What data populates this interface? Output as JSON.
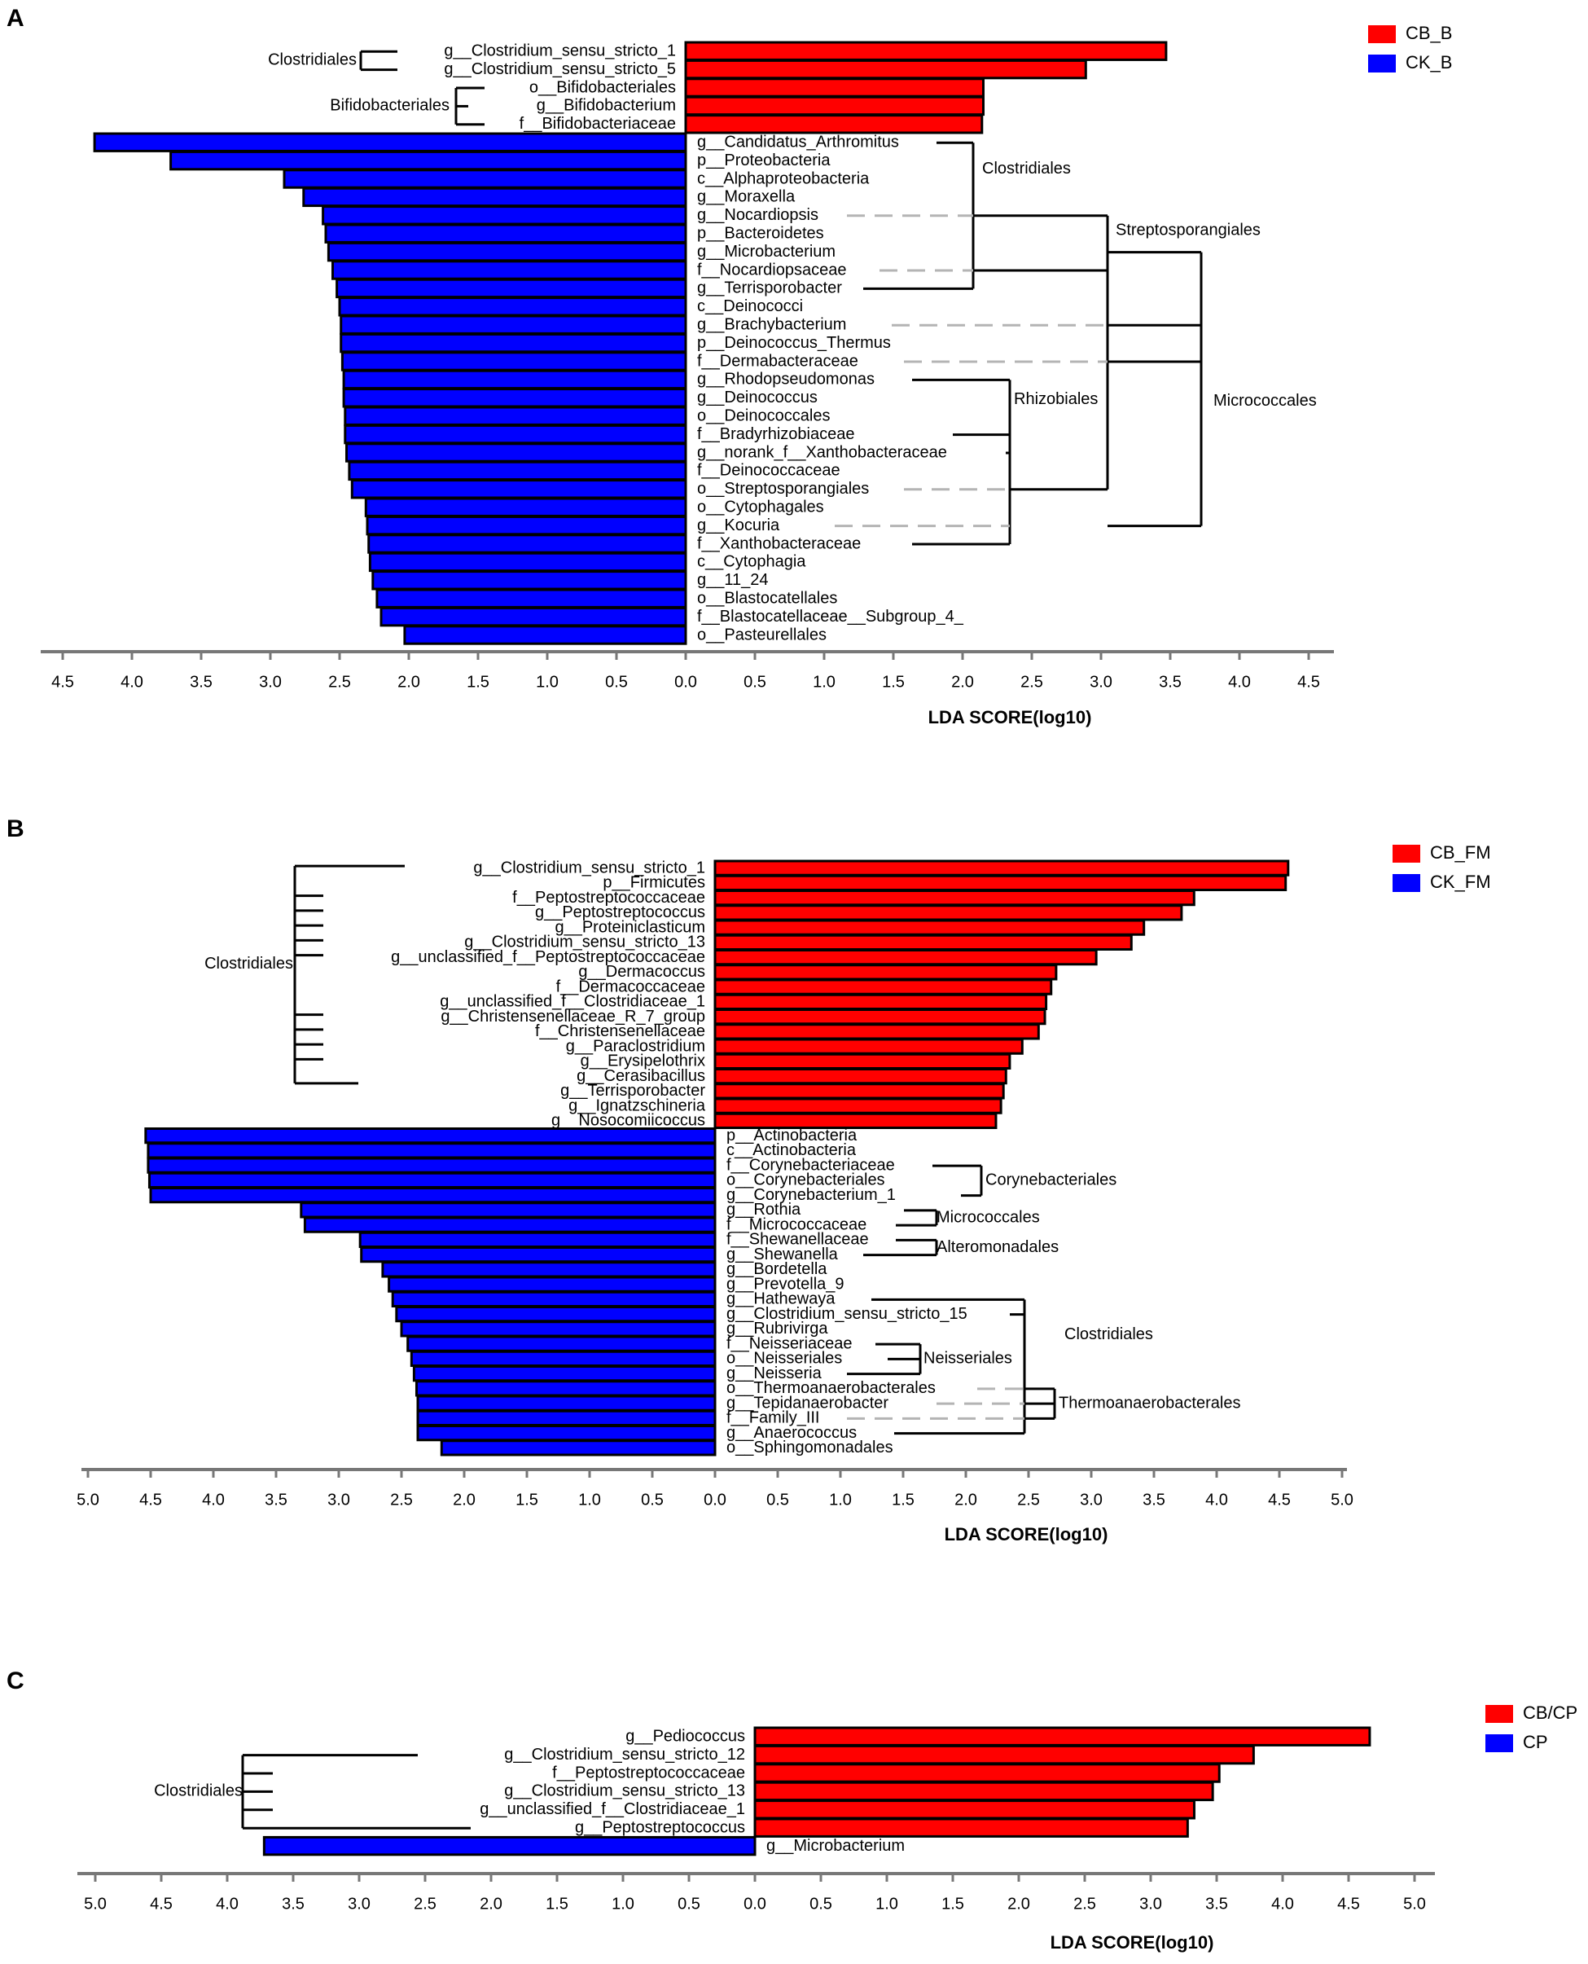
{
  "chart_data": [
    {
      "panel": "A",
      "type": "bar",
      "orientation": "horizontal",
      "title": "",
      "xlabel": "LDA SCORE(log10)",
      "xlim": [
        -4.5,
        4.5
      ],
      "ticks": [
        "4.5",
        "4.0",
        "3.5",
        "3.0",
        "2.5",
        "2.0",
        "1.5",
        "1.0",
        "0.5",
        "0.0",
        "0.5",
        "1.0",
        "1.5",
        "2.0",
        "2.5",
        "3.0",
        "3.5",
        "4.0",
        "4.5"
      ],
      "legend": [
        {
          "name": "CB_B",
          "color": "#ff0000"
        },
        {
          "name": "CK_B",
          "color": "#0000ff"
        }
      ],
      "series": [
        {
          "name": "CB_B",
          "color": "#ff0000",
          "side": "right",
          "labels": [
            "g__Clostridium_sensu_stricto_1",
            "g__Clostridium_sensu_stricto_5",
            "o__Bifidobacteriales",
            "g__Bifidobacterium",
            "f__Bifidobacteriaceae"
          ],
          "values": [
            3.47,
            2.89,
            2.15,
            2.15,
            2.14
          ]
        },
        {
          "name": "CK_B",
          "color": "#0000ff",
          "side": "left",
          "labels": [
            "g__Candidatus_Arthromitus",
            "p__Proteobacteria",
            "c__Alphaproteobacteria",
            "g__Moraxella",
            "g__Nocardiopsis",
            "p__Bacteroidetes",
            "g__Microbacterium",
            "f__Nocardiopsaceae",
            "g__Terrisporobacter",
            "c__Deinococci",
            "g__Brachybacterium",
            "p__Deinococcus_Thermus",
            "f__Dermabacteraceae",
            "g__Rhodopseudomonas",
            "g__Deinococcus",
            "o__Deinococcales",
            "f__Bradyrhizobiaceae",
            "g__norank_f__Xanthobacteraceae",
            "f__Deinococcaceae",
            "o__Streptosporangiales",
            "o__Cytophagales",
            "g__Kocuria",
            "f__Xanthobacteraceae",
            "c__Cytophagia",
            "g__11_24",
            "o__Blastocatellales",
            "f__Blastocatellaceae__Subgroup_4_",
            "o__Pasteurellales"
          ],
          "values": [
            4.27,
            3.72,
            2.9,
            2.76,
            2.62,
            2.6,
            2.58,
            2.55,
            2.52,
            2.5,
            2.49,
            2.49,
            2.48,
            2.47,
            2.47,
            2.46,
            2.46,
            2.45,
            2.43,
            2.41,
            2.31,
            2.3,
            2.29,
            2.28,
            2.26,
            2.23,
            2.2,
            2.03
          ]
        }
      ],
      "groups": [
        "Clostridiales",
        "Bifidobacteriales",
        "Clostridiales",
        "Streptosporangiales",
        "Micrococcales",
        "Rhizobiales"
      ]
    },
    {
      "panel": "B",
      "type": "bar",
      "orientation": "horizontal",
      "title": "",
      "xlabel": "LDA SCORE(log10)",
      "xlim": [
        -5.0,
        5.0
      ],
      "ticks": [
        "5.0",
        "4.5",
        "4.0",
        "3.5",
        "3.0",
        "2.5",
        "2.0",
        "1.5",
        "1.0",
        "0.5",
        "0.0",
        "0.5",
        "1.0",
        "1.5",
        "2.0",
        "2.5",
        "3.0",
        "3.5",
        "4.0",
        "4.5",
        "5.0"
      ],
      "legend": [
        {
          "name": "CB_FM",
          "color": "#ff0000"
        },
        {
          "name": "CK_FM",
          "color": "#0000ff"
        }
      ],
      "series": [
        {
          "name": "CB_FM",
          "color": "#ff0000",
          "side": "right",
          "labels": [
            "g__Clostridium_sensu_stricto_1",
            "p__Firmicutes",
            "f__Peptostreptococcaceae",
            "g__Peptostreptococcus",
            "g__Proteiniclasticum",
            "g__Clostridium_sensu_stricto_13",
            "g__unclassified_f__Peptostreptococcaceae",
            "g__Dermacoccus",
            "f__Dermacoccaceae",
            "g__unclassified_f__Clostridiaceae_1",
            "g__Christensenellaceae_R_7_group",
            "f__Christensenellaceae",
            "g__Paraclostridium",
            "g__Erysipelothrix",
            "g__Cerasibacillus",
            "g__Terrisporobacter",
            "g__Ignatzschineria",
            "g__Nosocomiicoccus"
          ],
          "values": [
            4.57,
            4.55,
            3.82,
            3.72,
            3.42,
            3.32,
            3.04,
            2.72,
            2.68,
            2.64,
            2.63,
            2.58,
            2.45,
            2.35,
            2.32,
            2.3,
            2.28,
            2.24
          ]
        },
        {
          "name": "CK_FM",
          "color": "#0000ff",
          "side": "left",
          "labels": [
            "p__Actinobacteria",
            "c__Actinobacteria",
            "f__Corynebacteriaceae",
            "o__Corynebacteriales",
            "g__Corynebacterium_1",
            "g__Rothia",
            "f__Micrococcaceae",
            "f__Shewanellaceae",
            "g__Shewanella",
            "g__Bordetella",
            "g__Prevotella_9",
            "g__Hathewaya",
            "g__Clostridium_sensu_stricto_15",
            "g__Rubrivirga",
            "f__Neisseriaceae",
            "o__Neisseriales",
            "g__Neisseria",
            "o__Thermoanaerobacterales",
            "g__Tepidanaerobacter",
            "f__Family_III",
            "g__Anaerococcus",
            "o__Sphingomonadales"
          ],
          "values": [
            4.54,
            4.52,
            4.52,
            4.51,
            4.5,
            3.3,
            3.27,
            2.83,
            2.82,
            2.65,
            2.6,
            2.57,
            2.54,
            2.5,
            2.45,
            2.42,
            2.4,
            2.38,
            2.37,
            2.37,
            2.37,
            2.18
          ]
        }
      ],
      "groups": [
        "Clostridiales",
        "Corynebacteriales",
        "Micrococcales",
        "Alteromonadales",
        "Clostridiales",
        "Neisseriales",
        "Thermoanaerobacterales"
      ]
    },
    {
      "panel": "C",
      "type": "bar",
      "orientation": "horizontal",
      "title": "",
      "xlabel": "LDA SCORE(log10)",
      "xlim": [
        -5.0,
        5.0
      ],
      "ticks": [
        "5.0",
        "4.5",
        "4.0",
        "3.5",
        "3.0",
        "2.5",
        "2.0",
        "1.5",
        "1.0",
        "0.5",
        "0.0",
        "0.5",
        "1.0",
        "1.5",
        "2.0",
        "2.5",
        "3.0",
        "3.5",
        "4.0",
        "4.5",
        "5.0"
      ],
      "legend": [
        {
          "name": "CB/CP",
          "color": "#ff0000"
        },
        {
          "name": "CP",
          "color": "#0000ff"
        }
      ],
      "series": [
        {
          "name": "CB/CP",
          "color": "#ff0000",
          "side": "right",
          "labels": [
            "g__Pediococcus",
            "g__Clostridium_sensu_stricto_12",
            "f__Peptostreptococcaceae",
            "g__Clostridium_sensu_stricto_13",
            "g__unclassified_f__Clostridiaceae_1",
            "g__Peptostreptococcus"
          ],
          "values": [
            4.66,
            3.78,
            3.52,
            3.47,
            3.33,
            3.28
          ]
        },
        {
          "name": "CP",
          "color": "#0000ff",
          "side": "left",
          "labels": [
            "g__Microbacterium"
          ],
          "values": [
            3.72
          ]
        }
      ],
      "groups": [
        "Clostridiales"
      ]
    }
  ]
}
